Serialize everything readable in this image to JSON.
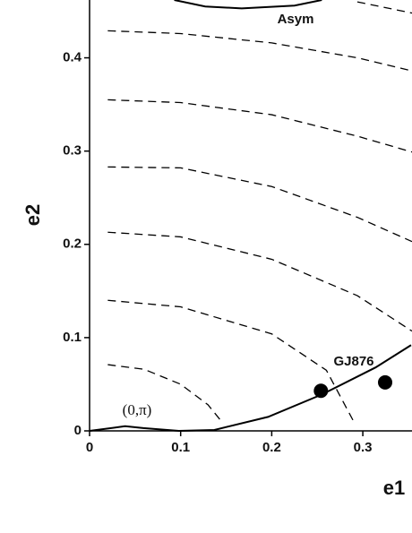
{
  "chart_data": {
    "type": "line",
    "x_label": "e1",
    "y_label": "e2",
    "annotations": [
      "Asym",
      "GJ876",
      "(0,π)"
    ],
    "xlim": [
      0,
      0.354
    ],
    "ylim": [
      0,
      0.462
    ],
    "xticks": [
      0,
      0.1,
      0.2,
      0.3
    ],
    "yticks": [
      0,
      0.1,
      0.2,
      0.3,
      0.4
    ],
    "color": "#000000",
    "series": [
      {
        "style": "dashed",
        "x": [
          0.02,
          0.06,
          0.1,
          0.13,
          0.145
        ],
        "values": [
          0.071,
          0.066,
          0.05,
          0.028,
          0.01
        ]
      },
      {
        "style": "dashed",
        "x": [
          0.02,
          0.1,
          0.2,
          0.26,
          0.29
        ],
        "values": [
          0.14,
          0.133,
          0.104,
          0.065,
          0.01
        ]
      },
      {
        "style": "dashed",
        "x": [
          0.02,
          0.1,
          0.2,
          0.294,
          0.354
        ],
        "values": [
          0.213,
          0.208,
          0.184,
          0.145,
          0.107
        ]
      },
      {
        "style": "dashed",
        "x": [
          0.02,
          0.1,
          0.2,
          0.294,
          0.354
        ],
        "values": [
          0.283,
          0.282,
          0.262,
          0.229,
          0.203
        ]
      },
      {
        "style": "dashed",
        "x": [
          0.02,
          0.1,
          0.2,
          0.294,
          0.354
        ],
        "values": [
          0.355,
          0.352,
          0.339,
          0.316,
          0.299
        ]
      },
      {
        "style": "dashed",
        "x": [
          0.02,
          0.1,
          0.2,
          0.294,
          0.354
        ],
        "values": [
          0.429,
          0.426,
          0.416,
          0.4,
          0.386
        ]
      },
      {
        "style": "dashed",
        "x": [
          0.294,
          0.354
        ],
        "values": [
          0.46,
          0.448
        ]
      },
      {
        "style": "solid",
        "x": [
          0,
          0.039,
          0.059,
          0.098,
          0.137,
          0.196,
          0.255,
          0.314,
          0.353
        ],
        "values": [
          0,
          0.005,
          0.003,
          0,
          0.001,
          0.015,
          0.039,
          0.068,
          0.092
        ]
      },
      {
        "style": "solid",
        "x": [
          0.093,
          0.127,
          0.167,
          0.225,
          0.255
        ],
        "values": [
          0.462,
          0.455,
          0.453,
          0.456,
          0.462
        ]
      }
    ],
    "points": {
      "x": [
        0.254,
        0.3245
      ],
      "values": [
        0.043,
        0.052
      ]
    }
  }
}
